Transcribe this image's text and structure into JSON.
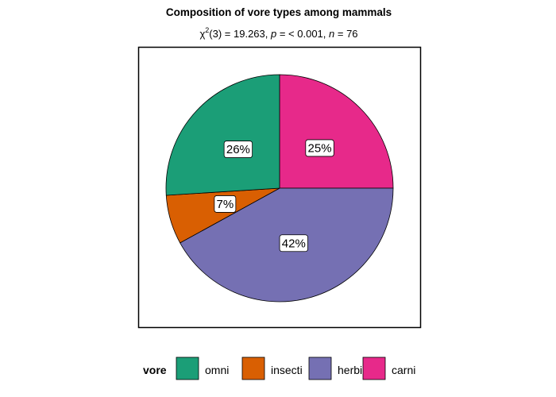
{
  "chart_data": {
    "type": "pie",
    "title": "Composition of vore types among mammals",
    "subtitle": {
      "chi_symbol": "χ",
      "chi_exponent": "2",
      "stat_text": "(3) = 19.263, ",
      "p_symbol": "p",
      "p_text": " = < 0.001, ",
      "n_symbol": "n",
      "n_text": " = 76"
    },
    "slices": [
      {
        "category": "carni",
        "value": 25,
        "label": "25%",
        "color": "#E7298A"
      },
      {
        "category": "herbi",
        "value": 42,
        "label": "42%",
        "color": "#7570B3"
      },
      {
        "category": "insecti",
        "value": 7,
        "label": "7%",
        "color": "#D95F02"
      },
      {
        "category": "omni",
        "value": 26,
        "label": "26%",
        "color": "#1B9E77"
      }
    ],
    "legend": {
      "title": "vore",
      "position": "bottom",
      "items": [
        {
          "label": "omni",
          "color": "#1B9E77"
        },
        {
          "label": "insecti",
          "color": "#D95F02"
        },
        {
          "label": "herbi",
          "color": "#7570B3"
        },
        {
          "label": "carni",
          "color": "#E7298A"
        }
      ]
    }
  }
}
